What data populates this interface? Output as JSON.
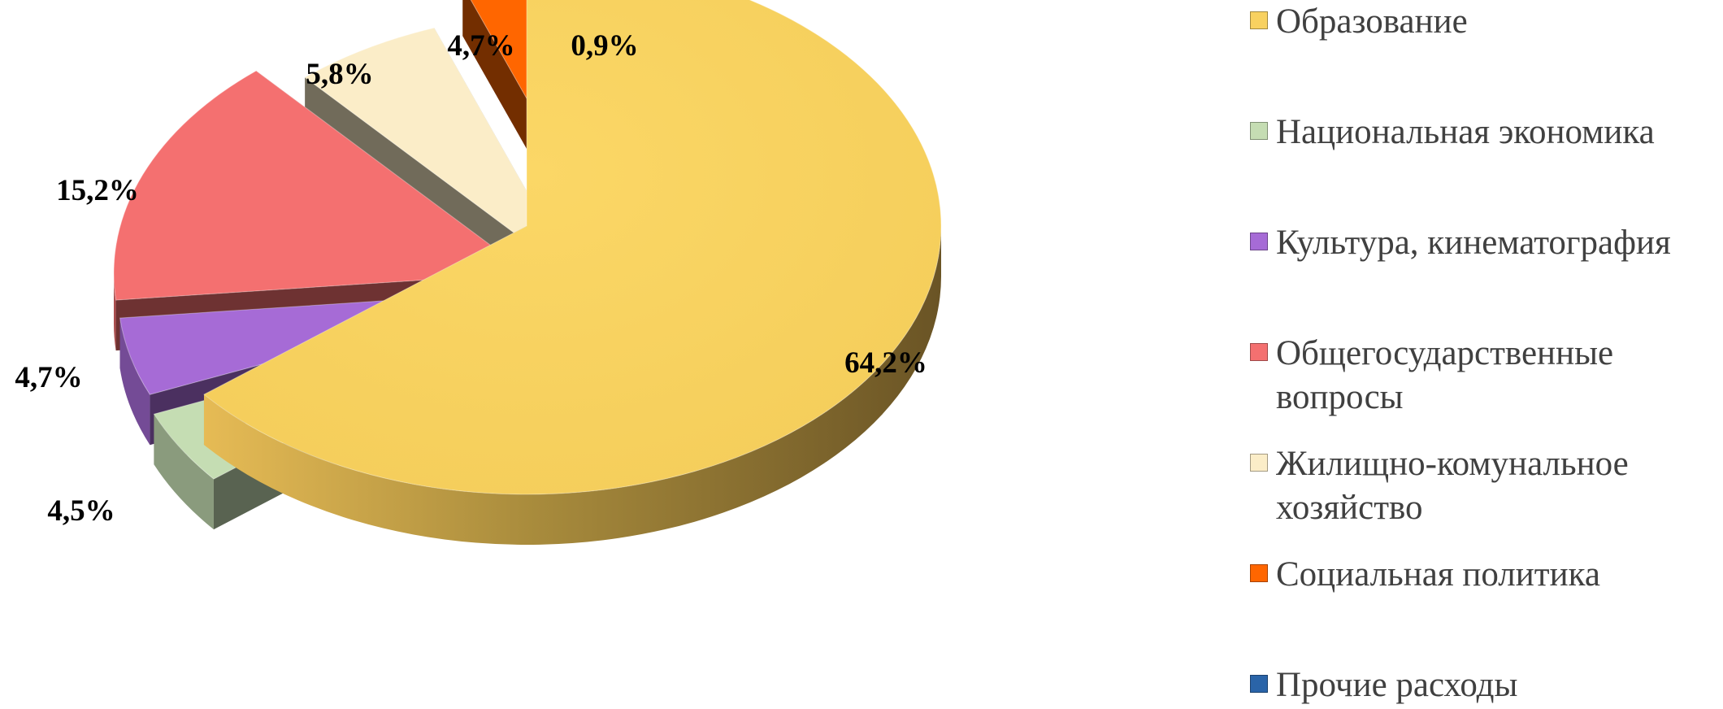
{
  "chart_data": {
    "type": "pie",
    "style": "3d-exploded",
    "legend_position": "right",
    "slices": [
      {
        "label": "Образование",
        "value": 64.2,
        "value_label": "64,2%",
        "color": "#F8D160"
      },
      {
        "label": "Национальная экономика",
        "value": 4.5,
        "value_label": "4,5%",
        "color": "#C5DDB3"
      },
      {
        "label": "Культура, кинематография",
        "value": 4.7,
        "value_label": "4,7%",
        "color": "#A66BD6"
      },
      {
        "label": "Общегосударственные вопросы",
        "value": 15.2,
        "value_label": "15,2%",
        "color": "#F47070"
      },
      {
        "label": "Жилищно-комунальное хозяйство",
        "value": 5.8,
        "value_label": "5,8%",
        "color": "#FBEDC8"
      },
      {
        "label": "Социальная политика",
        "value": 4.7,
        "value_label": "4,7%",
        "color": "#FF6600"
      },
      {
        "label": "Прочие расходы",
        "value": 0.9,
        "value_label": "0,9%",
        "color": "#2A64A8"
      }
    ]
  }
}
